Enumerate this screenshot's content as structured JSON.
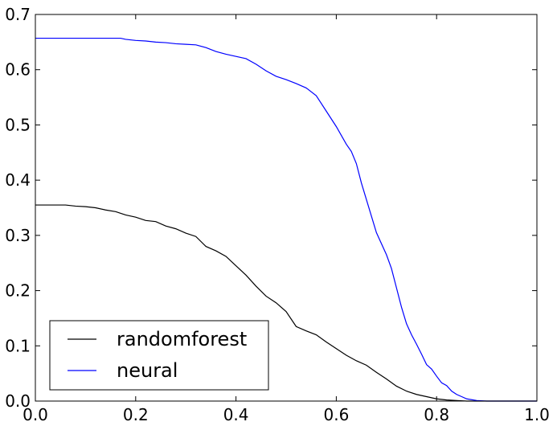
{
  "chart_data": {
    "type": "line",
    "title": "",
    "xlabel": "",
    "ylabel": "",
    "xlim": [
      0.0,
      1.0
    ],
    "ylim": [
      0.0,
      0.7
    ],
    "x_ticks": [
      0.0,
      0.2,
      0.4,
      0.6,
      0.8,
      1.0
    ],
    "x_tick_labels": [
      "0.0",
      "0.2",
      "0.4",
      "0.6",
      "0.8",
      "1.0"
    ],
    "y_ticks": [
      0.0,
      0.1,
      0.2,
      0.3,
      0.4,
      0.5,
      0.6,
      0.7
    ],
    "y_tick_labels": [
      "0.0",
      "0.1",
      "0.2",
      "0.3",
      "0.4",
      "0.5",
      "0.6",
      "0.7"
    ],
    "grid": false,
    "legend_position": "lower-left",
    "series": [
      {
        "name": "randomforest",
        "color": "#000000",
        "points": [
          [
            0.0,
            0.355
          ],
          [
            0.06,
            0.355
          ],
          [
            0.08,
            0.353
          ],
          [
            0.1,
            0.352
          ],
          [
            0.12,
            0.35
          ],
          [
            0.14,
            0.346
          ],
          [
            0.16,
            0.343
          ],
          [
            0.18,
            0.337
          ],
          [
            0.2,
            0.333
          ],
          [
            0.22,
            0.327
          ],
          [
            0.24,
            0.325
          ],
          [
            0.26,
            0.317
          ],
          [
            0.28,
            0.312
          ],
          [
            0.3,
            0.304
          ],
          [
            0.32,
            0.298
          ],
          [
            0.34,
            0.28
          ],
          [
            0.36,
            0.272
          ],
          [
            0.38,
            0.262
          ],
          [
            0.4,
            0.245
          ],
          [
            0.42,
            0.228
          ],
          [
            0.44,
            0.208
          ],
          [
            0.46,
            0.19
          ],
          [
            0.48,
            0.178
          ],
          [
            0.5,
            0.162
          ],
          [
            0.52,
            0.135
          ],
          [
            0.54,
            0.127
          ],
          [
            0.56,
            0.12
          ],
          [
            0.58,
            0.107
          ],
          [
            0.6,
            0.095
          ],
          [
            0.62,
            0.083
          ],
          [
            0.64,
            0.073
          ],
          [
            0.66,
            0.065
          ],
          [
            0.68,
            0.052
          ],
          [
            0.7,
            0.04
          ],
          [
            0.72,
            0.027
          ],
          [
            0.74,
            0.018
          ],
          [
            0.76,
            0.012
          ],
          [
            0.78,
            0.008
          ],
          [
            0.8,
            0.004
          ],
          [
            0.82,
            0.002
          ],
          [
            0.84,
            0.001
          ],
          [
            0.86,
            0.0
          ],
          [
            1.0,
            0.0
          ]
        ]
      },
      {
        "name": "neural",
        "color": "#0000ff",
        "points": [
          [
            0.0,
            0.657
          ],
          [
            0.17,
            0.657
          ],
          [
            0.18,
            0.655
          ],
          [
            0.2,
            0.653
          ],
          [
            0.22,
            0.652
          ],
          [
            0.24,
            0.65
          ],
          [
            0.26,
            0.649
          ],
          [
            0.28,
            0.647
          ],
          [
            0.3,
            0.646
          ],
          [
            0.32,
            0.645
          ],
          [
            0.34,
            0.64
          ],
          [
            0.36,
            0.633
          ],
          [
            0.38,
            0.628
          ],
          [
            0.4,
            0.624
          ],
          [
            0.42,
            0.62
          ],
          [
            0.44,
            0.61
          ],
          [
            0.46,
            0.598
          ],
          [
            0.48,
            0.588
          ],
          [
            0.5,
            0.582
          ],
          [
            0.52,
            0.575
          ],
          [
            0.54,
            0.567
          ],
          [
            0.56,
            0.553
          ],
          [
            0.58,
            0.525
          ],
          [
            0.6,
            0.497
          ],
          [
            0.62,
            0.465
          ],
          [
            0.63,
            0.452
          ],
          [
            0.64,
            0.43
          ],
          [
            0.65,
            0.395
          ],
          [
            0.66,
            0.365
          ],
          [
            0.67,
            0.335
          ],
          [
            0.68,
            0.305
          ],
          [
            0.7,
            0.265
          ],
          [
            0.71,
            0.24
          ],
          [
            0.72,
            0.205
          ],
          [
            0.73,
            0.17
          ],
          [
            0.74,
            0.14
          ],
          [
            0.75,
            0.12
          ],
          [
            0.76,
            0.103
          ],
          [
            0.77,
            0.085
          ],
          [
            0.78,
            0.066
          ],
          [
            0.79,
            0.058
          ],
          [
            0.8,
            0.045
          ],
          [
            0.81,
            0.033
          ],
          [
            0.82,
            0.028
          ],
          [
            0.83,
            0.018
          ],
          [
            0.84,
            0.012
          ],
          [
            0.85,
            0.008
          ],
          [
            0.86,
            0.004
          ],
          [
            0.88,
            0.001
          ],
          [
            0.9,
            0.0
          ],
          [
            1.0,
            0.0
          ]
        ]
      }
    ]
  }
}
